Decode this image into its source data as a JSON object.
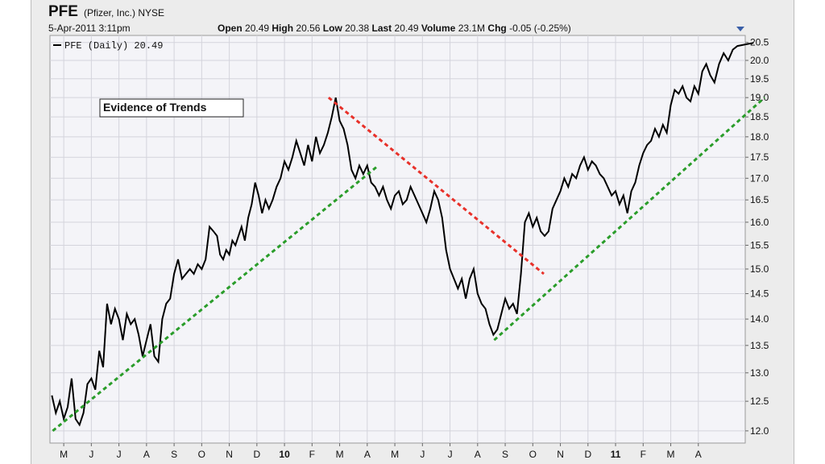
{
  "header": {
    "symbol": "PFE",
    "company": "(Pfizer, Inc.) NYSE",
    "datetime": "5-Apr-2011 3:11pm",
    "open_label": "Open",
    "open": "20.49",
    "high_label": "High",
    "high": "20.56",
    "low_label": "Low",
    "low": "20.38",
    "last_label": "Last",
    "last": "20.49",
    "volume_label": "Volume",
    "volume": "23.1M",
    "chg_label": "Chg",
    "chg": "-0.05 (-0.25%)"
  },
  "chart_data": {
    "type": "line",
    "legend": "PFE (Daily) 20.49",
    "annotation": "Evidence of Trends",
    "x_ticks": [
      "M",
      "J",
      "J",
      "A",
      "S",
      "O",
      "N",
      "D",
      "10",
      "F",
      "M",
      "A",
      "M",
      "J",
      "J",
      "A",
      "S",
      "O",
      "N",
      "D",
      "11",
      "F",
      "M",
      "A"
    ],
    "y_ticks": [
      12.0,
      12.5,
      13.0,
      13.5,
      14.0,
      14.5,
      15.0,
      15.5,
      16.0,
      16.5,
      17.0,
      17.5,
      18.0,
      18.5,
      19.0,
      19.5,
      20.0,
      20.5
    ],
    "ylim": [
      11.8,
      20.7
    ],
    "y_scale": "log",
    "grid": true,
    "colors": {
      "price": "#000000",
      "uptrend": "#2a9d2a",
      "downtrend": "#e8312a",
      "plot_bg": "#f4f4f8",
      "grid": "#d4d4dc"
    },
    "price_series": [
      [
        "Mar 2009",
        12.6
      ],
      [
        "Mar 2009",
        12.3
      ],
      [
        "Mar 2009",
        12.5
      ],
      [
        "Mar 2009",
        12.2
      ],
      [
        "Mar 2009",
        12.4
      ],
      [
        "Mar 2009",
        12.9
      ],
      [
        "Mar 2009",
        12.2
      ],
      [
        "Apr 2009",
        12.1
      ],
      [
        "Apr 2009",
        12.3
      ],
      [
        "Apr 2009",
        12.8
      ],
      [
        "Apr 2009",
        12.9
      ],
      [
        "Apr 2009",
        12.7
      ],
      [
        "Apr 2009",
        13.4
      ],
      [
        "Apr 2009",
        13.1
      ],
      [
        "May 2009",
        14.3
      ],
      [
        "May 2009",
        13.9
      ],
      [
        "May 2009",
        14.2
      ],
      [
        "May 2009",
        14.0
      ],
      [
        "May 2009",
        13.6
      ],
      [
        "May 2009",
        14.1
      ],
      [
        "May 2009",
        13.9
      ],
      [
        "Jun 2009",
        14.0
      ],
      [
        "Jun 2009",
        13.7
      ],
      [
        "Jun 2009",
        13.3
      ],
      [
        "Jun 2009",
        13.6
      ],
      [
        "Jun 2009",
        13.9
      ],
      [
        "Jun 2009",
        13.3
      ],
      [
        "Jun 2009",
        13.2
      ],
      [
        "Jul 2009",
        14.0
      ],
      [
        "Jul 2009",
        14.3
      ],
      [
        "Jul 2009",
        14.4
      ],
      [
        "Jul 2009",
        14.9
      ],
      [
        "Jul 2009",
        15.2
      ],
      [
        "Jul 2009",
        14.8
      ],
      [
        "Jul 2009",
        14.9
      ],
      [
        "Aug 2009",
        15.0
      ],
      [
        "Aug 2009",
        14.9
      ],
      [
        "Aug 2009",
        15.1
      ],
      [
        "Aug 2009",
        15.0
      ],
      [
        "Aug 2009",
        15.2
      ],
      [
        "Aug 2009",
        15.9
      ],
      [
        "Aug 2009",
        15.8
      ],
      [
        "Sep 2009",
        15.7
      ],
      [
        "Sep 2009",
        15.3
      ],
      [
        "Sep 2009",
        15.2
      ],
      [
        "Sep 2009",
        15.4
      ],
      [
        "Sep 2009",
        15.3
      ],
      [
        "Sep 2009",
        15.6
      ],
      [
        "Sep 2009",
        15.5
      ],
      [
        "Sep 2009",
        15.7
      ],
      [
        "Sep 2009",
        15.9
      ],
      [
        "Oct 2009",
        15.6
      ],
      [
        "Oct 2009",
        16.1
      ],
      [
        "Oct 2009",
        16.4
      ],
      [
        "Oct 2009",
        16.9
      ],
      [
        "Oct 2009",
        16.6
      ],
      [
        "Oct 2009",
        16.2
      ],
      [
        "Oct 2009",
        16.5
      ],
      [
        "Oct 2009",
        16.3
      ],
      [
        "Nov 2009",
        16.5
      ],
      [
        "Nov 2009",
        16.8
      ],
      [
        "Nov 2009",
        17.0
      ],
      [
        "Nov 2009",
        17.4
      ],
      [
        "Nov 2009",
        17.2
      ],
      [
        "Nov 2009",
        17.5
      ],
      [
        "Nov 2009",
        17.9
      ],
      [
        "Dec 2009",
        17.6
      ],
      [
        "Dec 2009",
        17.3
      ],
      [
        "Dec 2009",
        17.8
      ],
      [
        "Dec 2009",
        17.4
      ],
      [
        "Dec 2009",
        18.0
      ],
      [
        "Dec 2009",
        17.6
      ],
      [
        "Dec 2009",
        17.8
      ],
      [
        "Jan 2010",
        18.1
      ],
      [
        "Jan 2010",
        18.5
      ],
      [
        "Jan 2010",
        19.0
      ],
      [
        "Jan 2010",
        18.4
      ],
      [
        "Jan 2010",
        18.2
      ],
      [
        "Jan 2010",
        17.8
      ],
      [
        "Jan 2010",
        17.2
      ],
      [
        "Feb 2010",
        17.0
      ],
      [
        "Feb 2010",
        17.3
      ],
      [
        "Feb 2010",
        17.1
      ],
      [
        "Feb 2010",
        17.3
      ],
      [
        "Feb 2010",
        16.9
      ],
      [
        "Feb 2010",
        16.8
      ],
      [
        "Feb 2010",
        16.6
      ],
      [
        "Mar 2010",
        16.8
      ],
      [
        "Mar 2010",
        16.5
      ],
      [
        "Mar 2010",
        16.3
      ],
      [
        "Mar 2010",
        16.6
      ],
      [
        "Mar 2010",
        16.7
      ],
      [
        "Mar 2010",
        16.4
      ],
      [
        "Mar 2010",
        16.5
      ],
      [
        "Apr 2010",
        16.8
      ],
      [
        "Apr 2010",
        16.6
      ],
      [
        "Apr 2010",
        16.4
      ],
      [
        "Apr 2010",
        16.2
      ],
      [
        "Apr 2010",
        16.0
      ],
      [
        "Apr 2010",
        16.3
      ],
      [
        "Apr 2010",
        16.7
      ],
      [
        "May 2010",
        16.5
      ],
      [
        "May 2010",
        16.1
      ],
      [
        "May 2010",
        15.4
      ],
      [
        "May 2010",
        15.0
      ],
      [
        "May 2010",
        14.8
      ],
      [
        "May 2010",
        14.6
      ],
      [
        "May 2010",
        14.8
      ],
      [
        "Jun 2010",
        14.4
      ],
      [
        "Jun 2010",
        14.8
      ],
      [
        "Jun 2010",
        15.0
      ],
      [
        "Jun 2010",
        14.5
      ],
      [
        "Jun 2010",
        14.3
      ],
      [
        "Jun 2010",
        14.2
      ],
      [
        "Jun 2010",
        13.9
      ],
      [
        "Jul 2010",
        13.7
      ],
      [
        "Jul 2010",
        13.8
      ],
      [
        "Jul 2010",
        14.1
      ],
      [
        "Jul 2010",
        14.4
      ],
      [
        "Jul 2010",
        14.2
      ],
      [
        "Jul 2010",
        14.3
      ],
      [
        "Jul 2010",
        14.1
      ],
      [
        "Aug 2010",
        14.9
      ],
      [
        "Aug 2010",
        16.0
      ],
      [
        "Aug 2010",
        16.2
      ],
      [
        "Aug 2010",
        15.9
      ],
      [
        "Aug 2010",
        16.1
      ],
      [
        "Aug 2010",
        15.8
      ],
      [
        "Aug 2010",
        15.7
      ],
      [
        "Sep 2010",
        15.8
      ],
      [
        "Sep 2010",
        16.3
      ],
      [
        "Sep 2010",
        16.5
      ],
      [
        "Sep 2010",
        16.7
      ],
      [
        "Sep 2010",
        17.0
      ],
      [
        "Sep 2010",
        16.8
      ],
      [
        "Sep 2010",
        17.1
      ],
      [
        "Oct 2010",
        17.0
      ],
      [
        "Oct 2010",
        17.3
      ],
      [
        "Oct 2010",
        17.5
      ],
      [
        "Oct 2010",
        17.2
      ],
      [
        "Oct 2010",
        17.4
      ],
      [
        "Oct 2010",
        17.3
      ],
      [
        "Oct 2010",
        17.1
      ],
      [
        "Nov 2010",
        17.0
      ],
      [
        "Nov 2010",
        16.8
      ],
      [
        "Nov 2010",
        16.6
      ],
      [
        "Nov 2010",
        16.7
      ],
      [
        "Nov 2010",
        16.4
      ],
      [
        "Nov 2010",
        16.6
      ],
      [
        "Nov 2010",
        16.2
      ],
      [
        "Dec 2010",
        16.7
      ],
      [
        "Dec 2010",
        16.9
      ],
      [
        "Dec 2010",
        17.3
      ],
      [
        "Dec 2010",
        17.6
      ],
      [
        "Dec 2010",
        17.8
      ],
      [
        "Dec 2010",
        17.9
      ],
      [
        "Dec 2010",
        18.2
      ],
      [
        "Jan 2011",
        18.0
      ],
      [
        "Jan 2011",
        18.3
      ],
      [
        "Jan 2011",
        18.1
      ],
      [
        "Jan 2011",
        18.8
      ],
      [
        "Jan 2011",
        19.2
      ],
      [
        "Jan 2011",
        19.1
      ],
      [
        "Jan 2011",
        19.3
      ],
      [
        "Feb 2011",
        19.0
      ],
      [
        "Feb 2011",
        18.9
      ],
      [
        "Feb 2011",
        19.3
      ],
      [
        "Feb 2011",
        19.1
      ],
      [
        "Feb 2011",
        19.7
      ],
      [
        "Feb 2011",
        19.9
      ],
      [
        "Feb 2011",
        19.6
      ],
      [
        "Mar 2011",
        19.4
      ],
      [
        "Mar 2011",
        19.9
      ],
      [
        "Mar 2011",
        20.2
      ],
      [
        "Mar 2011",
        20.0
      ],
      [
        "Mar 2011",
        20.3
      ],
      [
        "Mar 2011",
        20.4
      ],
      [
        "Apr 2011",
        20.49
      ]
    ],
    "trendlines": [
      {
        "kind": "up",
        "from": [
          "Mar 2009",
          12.0
        ],
        "to": [
          "Feb 2010",
          17.3
        ]
      },
      {
        "kind": "down",
        "from": [
          "Jan 2010",
          19.0
        ],
        "to": [
          "Aug 2010",
          14.9
        ]
      },
      {
        "kind": "up",
        "from": [
          "Jul 2010",
          13.6
        ],
        "to": [
          "Apr 2011",
          19.0
        ]
      }
    ]
  }
}
